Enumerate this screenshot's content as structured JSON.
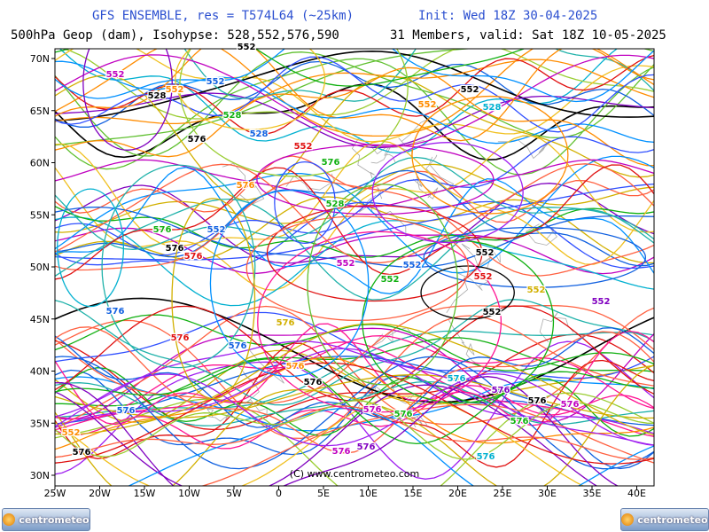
{
  "header": {
    "model": "GFS ENSEMBLE, res = T574L64 (~25km)",
    "init": "Init: Wed 18Z 30-04-2025",
    "field": "500hPa Geop (dam), Isohypse: 528,552,576,590",
    "valid": "31 Members, valid: Sat 18Z 10-05-2025"
  },
  "map": {
    "lat_labels": [
      "70N",
      "65N",
      "60N",
      "55N",
      "50N",
      "45N",
      "40N",
      "35N",
      "30N"
    ],
    "lon_labels": [
      "25W",
      "20W",
      "15W",
      "10W",
      "5W",
      "0",
      "5E",
      "10E",
      "15E",
      "20E",
      "25E",
      "30E",
      "35E",
      "40E"
    ],
    "copyright": "(C) www.centrometeo.com",
    "contour_labels": [
      "552",
      "552",
      "528",
      "552",
      "552",
      "552",
      "528",
      "528",
      "576",
      "528",
      "552",
      "576",
      "552",
      "576",
      "528",
      "576",
      "552",
      "576",
      "576",
      "552",
      "552",
      "552",
      "552",
      "552",
      "552",
      "576",
      "552",
      "576",
      "576",
      "576",
      "576",
      "576",
      "576",
      "576",
      "576",
      "576",
      "576",
      "576",
      "576",
      "576",
      "576",
      "576",
      "552",
      "552",
      "576",
      "576"
    ]
  },
  "logos": {
    "left": "centrometeo",
    "right": "centrometeo"
  }
}
